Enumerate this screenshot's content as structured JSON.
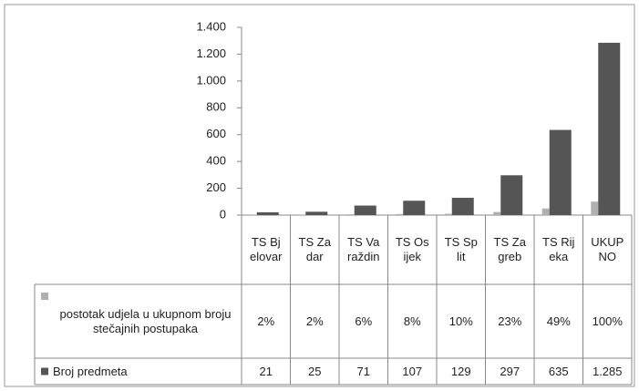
{
  "chart_data": {
    "type": "bar",
    "categories": [
      "TS Bjelovar",
      "TS Zadar",
      "TS Varaždin",
      "TS Osijek",
      "TS Split",
      "TS Zagreb",
      "TS Rijeka",
      "UKUPNO"
    ],
    "series": [
      {
        "name": "postotak udjela u ukupnom broju stečajnih postupaka",
        "color": "#b0b0b0",
        "values": [
          2,
          2,
          6,
          8,
          10,
          23,
          49,
          100
        ],
        "value_labels": [
          "2%",
          "2%",
          "6%",
          "8%",
          "10%",
          "23%",
          "49%",
          "100%"
        ]
      },
      {
        "name": "Broj predmeta",
        "color": "#555555",
        "values": [
          21,
          25,
          71,
          107,
          129,
          297,
          635,
          1285
        ],
        "value_labels": [
          "21",
          "25",
          "71",
          "107",
          "129",
          "297",
          "635",
          "1.285"
        ]
      }
    ],
    "ylim": [
      0,
      1400
    ],
    "yticks": [
      0,
      200,
      400,
      600,
      800,
      {
        "value": 1000,
        "label": "1.000"
      },
      {
        "value": 1200,
        "label": "1.200"
      },
      {
        "value": 1400,
        "label": "1.400"
      }
    ]
  }
}
